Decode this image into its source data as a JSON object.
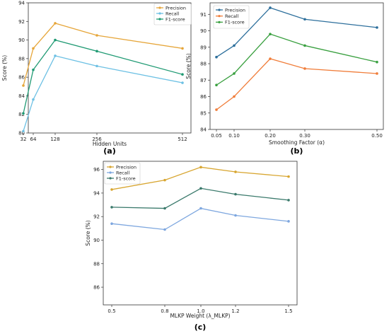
{
  "chart_data": [
    {
      "type": "line",
      "caption": "(a)",
      "xlabel": "Hidden Units",
      "ylabel": "Score (%)",
      "x": [
        32,
        64,
        128,
        256,
        512
      ],
      "x_tick_labels": [
        "32",
        "64",
        "128",
        "256",
        "512"
      ],
      "ylim": [
        80,
        94
      ],
      "y_ticks": [
        80,
        82,
        84,
        86,
        88,
        90,
        92,
        94
      ],
      "legend_position": "top-right",
      "series": [
        {
          "name": "Precision",
          "color": "#e6a63a",
          "values": [
            85.1,
            89.1,
            91.8,
            90.5,
            89.1
          ]
        },
        {
          "name": "Recall",
          "color": "#6ec1e4",
          "values": [
            80.2,
            83.6,
            88.3,
            87.2,
            85.4
          ]
        },
        {
          "name": "F1-score",
          "color": "#1f9a73",
          "values": [
            82.1,
            86.8,
            90.0,
            88.8,
            86.3
          ]
        }
      ]
    },
    {
      "type": "line",
      "caption": "(b)",
      "xlabel": "Smoothing Factor (α)",
      "ylabel": "Score (%)",
      "x": [
        0.05,
        0.1,
        0.2,
        0.3,
        0.5
      ],
      "x_tick_labels": [
        "0.05",
        "0.10",
        "0.20",
        "0.30",
        "0.50"
      ],
      "ylim": [
        84,
        91.7
      ],
      "y_ticks": [
        84,
        85,
        86,
        87,
        88,
        89,
        90,
        91
      ],
      "legend_position": "top-left",
      "series": [
        {
          "name": "Precision",
          "color": "#2d6f9c",
          "values": [
            88.4,
            89.1,
            91.4,
            90.7,
            90.2
          ]
        },
        {
          "name": "Recall",
          "color": "#f07d3a",
          "values": [
            85.2,
            86.0,
            88.3,
            87.7,
            87.4
          ]
        },
        {
          "name": "F1-score",
          "color": "#3aa040",
          "values": [
            86.7,
            87.4,
            89.8,
            89.1,
            88.1
          ]
        }
      ]
    },
    {
      "type": "line",
      "caption": "(c)",
      "xlabel": "MLKP Weight (λ_MLKP)",
      "ylabel": "Score (%)",
      "x": [
        0.5,
        0.8,
        1.0,
        1.2,
        1.5
      ],
      "x_tick_labels": [
        "0.5",
        "0.8",
        "1.0",
        "1.2",
        "1.5"
      ],
      "ylim": [
        84.5,
        96.7
      ],
      "y_ticks": [
        86,
        88,
        90,
        92,
        94,
        96
      ],
      "legend_position": "top-left",
      "series": [
        {
          "name": "Precision",
          "color": "#d8a631",
          "values": [
            94.3,
            95.1,
            96.2,
            95.8,
            95.4
          ]
        },
        {
          "name": "Recall",
          "color": "#7ea7df",
          "values": [
            91.4,
            90.9,
            92.7,
            92.1,
            91.6
          ]
        },
        {
          "name": "F1-score",
          "color": "#3b7a6c",
          "values": [
            92.8,
            92.7,
            94.4,
            93.9,
            93.4
          ]
        }
      ]
    }
  ]
}
